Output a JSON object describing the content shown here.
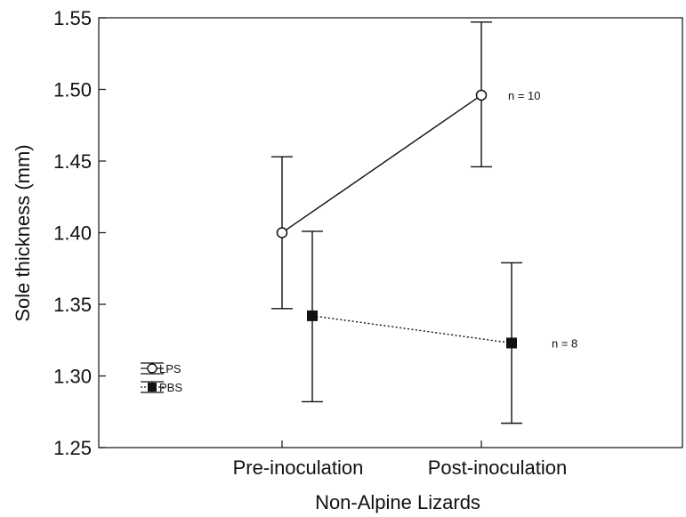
{
  "chart_data": {
    "type": "line",
    "title": "",
    "xlabel": "Non-Alpine Lizards",
    "ylabel": "Sole thickness (mm)",
    "categories": [
      "Pre-inoculation",
      "Post-inoculation"
    ],
    "ylim": [
      1.25,
      1.55
    ],
    "yticks": [
      "1.25",
      "1.30",
      "1.35",
      "1.40",
      "1.45",
      "1.50",
      "1.55"
    ],
    "grid": false,
    "legend_position": "lower-left",
    "series": [
      {
        "name": "LPS",
        "marker": "open-circle",
        "line_style": "solid",
        "values": [
          1.4,
          1.496
        ],
        "error_low": [
          1.347,
          1.446
        ],
        "error_high": [
          1.453,
          1.547
        ],
        "annotation": "n = 10"
      },
      {
        "name": "PBS",
        "marker": "filled-square",
        "line_style": "dotted",
        "values": [
          1.342,
          1.323
        ],
        "error_low": [
          1.282,
          1.267
        ],
        "error_high": [
          1.401,
          1.379
        ],
        "annotation": "n = 8"
      }
    ]
  }
}
